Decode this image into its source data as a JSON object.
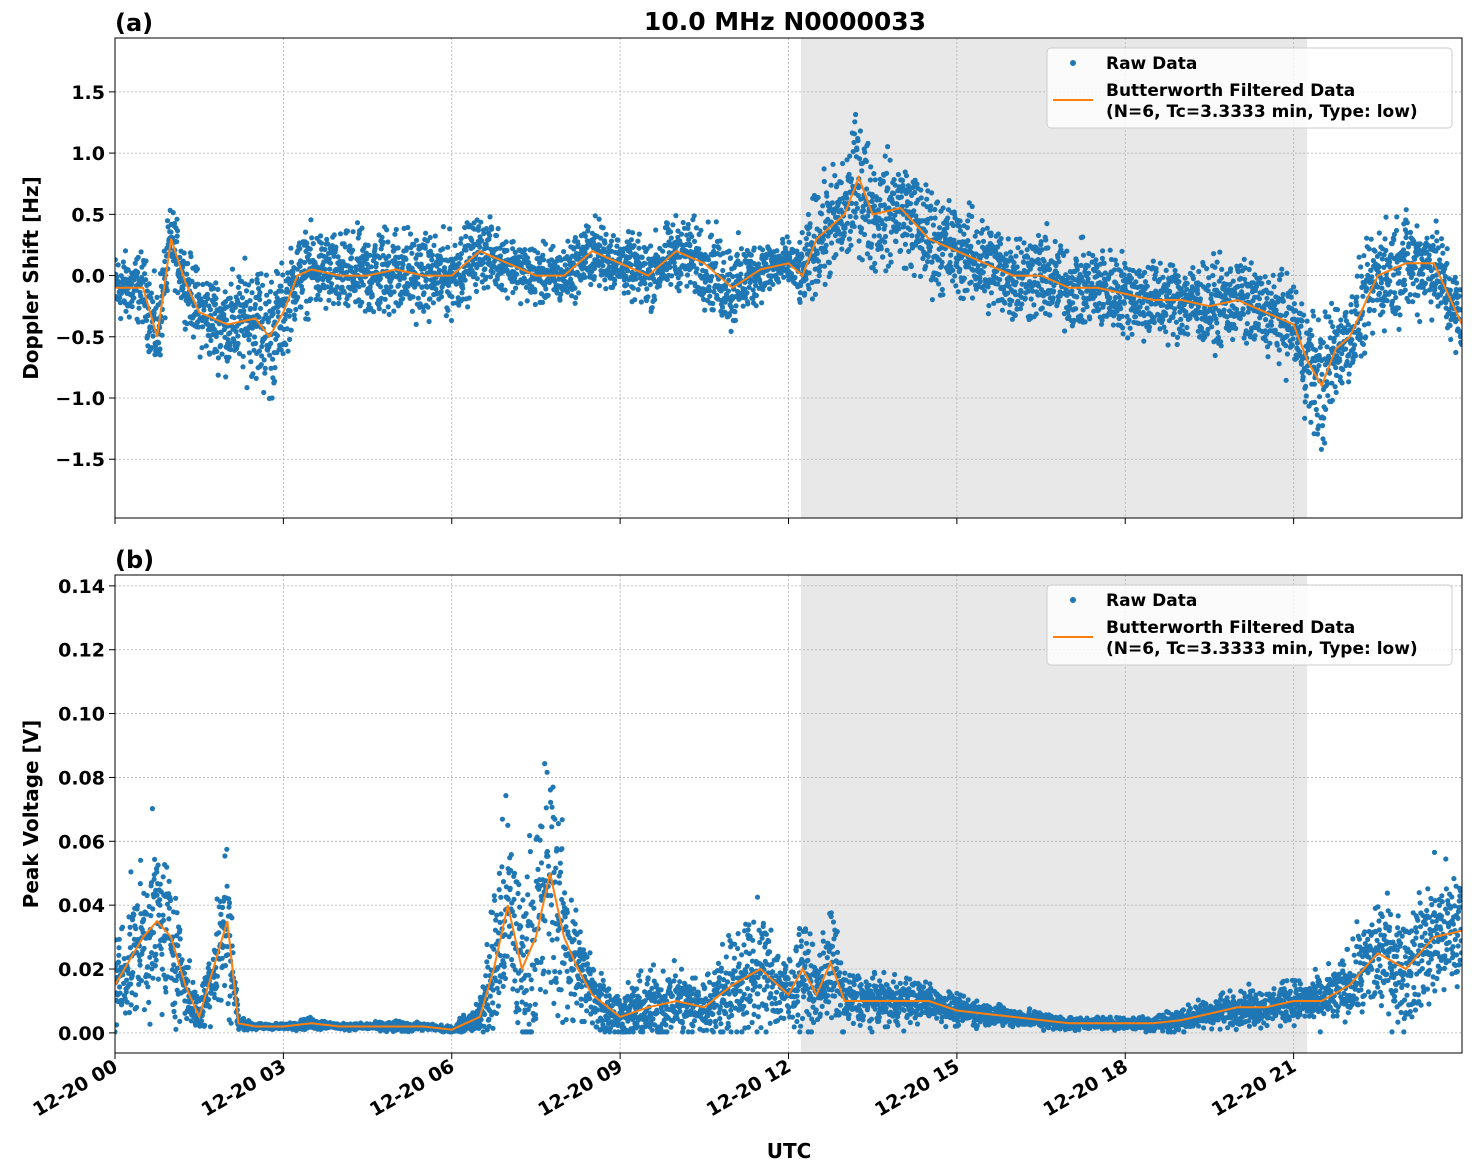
{
  "title": "10.0 MHz N0000033",
  "xlabel": "UTC",
  "x_ticks": [
    "12-20 00",
    "12-20 03",
    "12-20 06",
    "12-20 09",
    "12-20 12",
    "12-20 15",
    "12-20 18",
    "12-20 21"
  ],
  "legend": {
    "raw": "Raw Data",
    "filtered_line1": "Butterworth Filtered Data",
    "filtered_line2": "(N=6, Tc=3.3333 min, Type: low)"
  },
  "colors": {
    "raw": "#1f77b4",
    "filtered": "#ff7f0e",
    "shade": "#e8e8e8"
  },
  "chart_data": [
    {
      "type": "scatter+line",
      "panel_label": "(a)",
      "ylabel": "Doppler Shift [Hz]",
      "xlim_hours": [
        0,
        24
      ],
      "ylim": [
        -1.98,
        1.94
      ],
      "y_ticks": [
        -1.5,
        -1.0,
        -0.5,
        0.0,
        0.5,
        1.0,
        1.5
      ],
      "y_tick_labels": [
        "−1.5",
        "−1.0",
        "−0.5",
        "0.0",
        "0.5",
        "1.0",
        "1.5"
      ],
      "grid": true,
      "legend_placement": "upper right",
      "shaded_span_hours": [
        12.22,
        21.24
      ],
      "x_hours": [
        0,
        0.5,
        0.75,
        1.0,
        1.25,
        1.5,
        2.0,
        2.5,
        2.75,
        3.0,
        3.25,
        3.5,
        4,
        4.5,
        5,
        5.5,
        6,
        6.5,
        7,
        7.5,
        8,
        8.5,
        9,
        9.5,
        10,
        10.5,
        11,
        11.5,
        12,
        12.25,
        12.5,
        13,
        13.25,
        13.5,
        14,
        14.5,
        15,
        15.5,
        16,
        16.5,
        17,
        17.5,
        18,
        18.5,
        19,
        19.5,
        20,
        20.5,
        21,
        21.25,
        21.5,
        21.75,
        22,
        22.5,
        23,
        23.5,
        24
      ],
      "filtered": [
        -0.1,
        -0.1,
        -0.5,
        0.3,
        -0.05,
        -0.3,
        -0.4,
        -0.35,
        -0.5,
        -0.3,
        0.0,
        0.05,
        0.0,
        0.0,
        0.05,
        0.0,
        0.0,
        0.2,
        0.1,
        0.0,
        0.0,
        0.2,
        0.1,
        0.0,
        0.2,
        0.1,
        -0.1,
        0.05,
        0.1,
        0.0,
        0.3,
        0.5,
        0.8,
        0.5,
        0.55,
        0.3,
        0.2,
        0.1,
        0.0,
        0.0,
        -0.1,
        -0.1,
        -0.15,
        -0.2,
        -0.2,
        -0.25,
        -0.2,
        -0.3,
        -0.4,
        -0.7,
        -0.9,
        -0.6,
        -0.5,
        0.0,
        0.1,
        0.1,
        -0.4
      ],
      "raw_spread": [
        0.3,
        0.3,
        0.4,
        0.3,
        0.3,
        0.35,
        0.4,
        0.5,
        0.6,
        0.4,
        0.35,
        0.35,
        0.35,
        0.4,
        0.4,
        0.35,
        0.35,
        0.3,
        0.25,
        0.25,
        0.25,
        0.3,
        0.25,
        0.3,
        0.3,
        0.35,
        0.4,
        0.25,
        0.2,
        0.3,
        0.45,
        0.5,
        0.6,
        0.5,
        0.45,
        0.45,
        0.4,
        0.4,
        0.4,
        0.4,
        0.35,
        0.35,
        0.35,
        0.35,
        0.35,
        0.35,
        0.35,
        0.35,
        0.4,
        0.5,
        0.6,
        0.45,
        0.4,
        0.45,
        0.45,
        0.4,
        0.4
      ]
    },
    {
      "type": "scatter+line",
      "panel_label": "(b)",
      "ylabel": "Peak Voltage [V]",
      "xlim_hours": [
        0,
        24
      ],
      "ylim": [
        -0.0063,
        0.1434
      ],
      "y_ticks": [
        0.0,
        0.02,
        0.04,
        0.06,
        0.08,
        0.1,
        0.12,
        0.14
      ],
      "y_tick_labels": [
        "0.00",
        "0.02",
        "0.04",
        "0.06",
        "0.08",
        "0.10",
        "0.12",
        "0.14"
      ],
      "grid": true,
      "legend_placement": "upper right",
      "shaded_span_hours": [
        12.22,
        21.24
      ],
      "x_hours": [
        0,
        0.5,
        0.75,
        1.0,
        1.25,
        1.5,
        1.75,
        2.0,
        2.2,
        2.5,
        3,
        3.5,
        4,
        4.5,
        5,
        5.5,
        6,
        6.5,
        6.75,
        7.0,
        7.25,
        7.5,
        7.75,
        8.0,
        8.25,
        8.5,
        9,
        9.5,
        10,
        10.5,
        11,
        11.5,
        12,
        12.25,
        12.5,
        12.75,
        13,
        13.5,
        14,
        14.5,
        15,
        15.5,
        16,
        16.5,
        17,
        17.5,
        18,
        18.5,
        19,
        19.5,
        20,
        20.5,
        21,
        21.5,
        22,
        22.5,
        23,
        23.5,
        24
      ],
      "filtered": [
        0.015,
        0.03,
        0.035,
        0.03,
        0.015,
        0.005,
        0.02,
        0.035,
        0.003,
        0.002,
        0.002,
        0.003,
        0.002,
        0.002,
        0.002,
        0.002,
        0.001,
        0.005,
        0.02,
        0.04,
        0.02,
        0.03,
        0.05,
        0.03,
        0.02,
        0.012,
        0.005,
        0.008,
        0.01,
        0.008,
        0.015,
        0.02,
        0.012,
        0.02,
        0.012,
        0.022,
        0.01,
        0.01,
        0.01,
        0.01,
        0.007,
        0.006,
        0.005,
        0.004,
        0.003,
        0.003,
        0.003,
        0.003,
        0.004,
        0.006,
        0.008,
        0.008,
        0.01,
        0.01,
        0.015,
        0.025,
        0.02,
        0.03,
        0.032
      ],
      "raw_spread": [
        0.015,
        0.025,
        0.03,
        0.025,
        0.012,
        0.006,
        0.015,
        0.03,
        0.002,
        0.001,
        0.001,
        0.002,
        0.001,
        0.001,
        0.002,
        0.001,
        0.001,
        0.005,
        0.03,
        0.035,
        0.03,
        0.04,
        0.045,
        0.03,
        0.02,
        0.012,
        0.008,
        0.012,
        0.012,
        0.01,
        0.018,
        0.02,
        0.012,
        0.018,
        0.012,
        0.02,
        0.01,
        0.008,
        0.008,
        0.006,
        0.005,
        0.004,
        0.003,
        0.003,
        0.002,
        0.002,
        0.002,
        0.003,
        0.004,
        0.005,
        0.006,
        0.006,
        0.007,
        0.008,
        0.012,
        0.02,
        0.018,
        0.022,
        0.022
      ]
    }
  ]
}
